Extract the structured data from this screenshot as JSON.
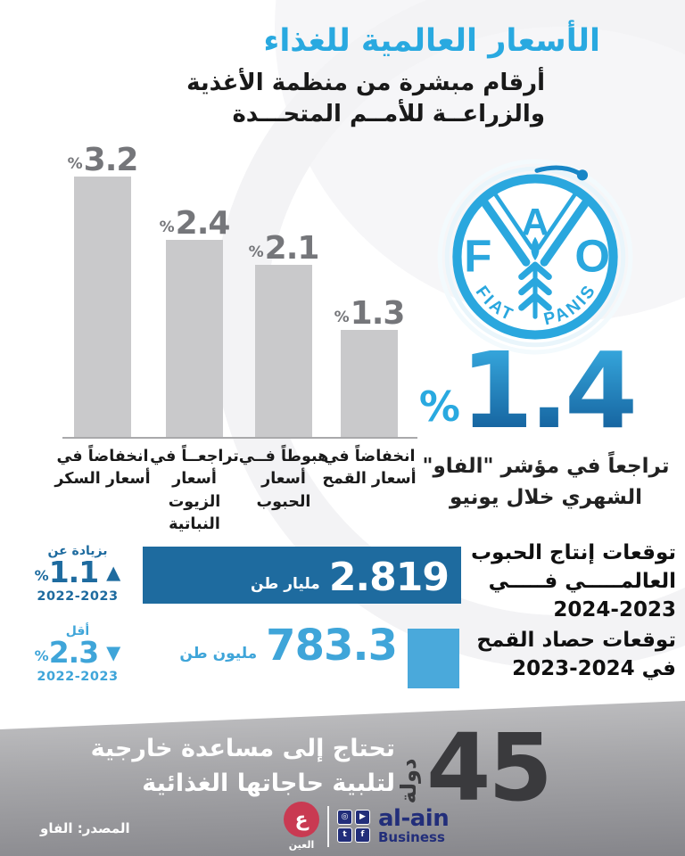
{
  "header": {
    "title": "الأسعار العالمية للغذاء",
    "subtitle_line1": "أرقام مبشرة من منظمة الأغذية",
    "subtitle_line2": "والزراعــة للأمــم المتحـــدة"
  },
  "chart_data": {
    "type": "bar",
    "unit": "%",
    "percent_sign": "%",
    "categories": [
      "انخفاضاً في أسعار السكر",
      "تراجعــاً في أسعار الزيوت النباتية",
      "هبوطاً فــي أسعار الحبوب",
      "انخفاضاً في أسعار القمح"
    ],
    "categories_lines": [
      [
        "انخفاضاً في",
        "أسعار السكر",
        ""
      ],
      [
        "تراجعــاً في",
        "أسعار الزيوت",
        "النباتية"
      ],
      [
        "هبوطاً فــي",
        "أسعار الحبوب",
        ""
      ],
      [
        "انخفاضاً في",
        "أسعار القمح",
        ""
      ]
    ],
    "values": [
      3.2,
      2.4,
      2.1,
      1.3
    ],
    "value_labels": [
      "3.2",
      "2.4",
      "2.1",
      "1.3"
    ],
    "ylim": [
      0,
      3.5
    ],
    "grid": false,
    "legend": false,
    "bar_color": "#c9c9cb",
    "value_color": "#75767a"
  },
  "fao_logo": {
    "letter_f": "F",
    "letter_a": "A",
    "letter_o": "O",
    "motto_left": "FIAT",
    "motto_right": "PANIS",
    "color": "#2aa7de"
  },
  "highlight": {
    "percent_sign": "%",
    "value": "1.4",
    "caption_line1": "تراجعاً في مؤشر \"الفاو\"",
    "caption_line2": "الشهري خلال يونيو",
    "color_top": "#36a7dd",
    "color_bottom": "#14609c"
  },
  "forecasts": [
    {
      "title_line1": "توقعات إنتاج الحبوب",
      "title_line2": "العالمـــــي فـــــي",
      "title_line3": "2024-2023",
      "value": "2.819",
      "unit": "مليار طن",
      "change_label": "بزيادة عن",
      "change_percent_sign": "%",
      "change_value": "1.1",
      "change_years": "2022-2023",
      "arrow": "▲",
      "color": "#1e6b9f"
    },
    {
      "title_line1": "توقعات حصاد القمح",
      "title_line2": "في 2024-2023",
      "value": "783.3",
      "unit": "مليون طن",
      "change_label": "أقل",
      "change_percent_sign": "%",
      "change_value": "2.3",
      "change_years": "2022-2023",
      "arrow": "▼",
      "color": "#3fa5d9"
    }
  ],
  "banner": {
    "number": "45",
    "number_label": "دولة",
    "line1": "تحتاج إلى مساعدة خارجية",
    "line2": "لتلبية حاجاتها الغذائية"
  },
  "footer": {
    "source": "المصدر: الفاو",
    "brand_arabic_glyph": "ع",
    "brand_arabic": "العين",
    "brand_name": "al-ain",
    "brand_sub": "Business",
    "social_icons": [
      {
        "name": "instagram-icon",
        "glyph": "◎"
      },
      {
        "name": "youtube-icon",
        "glyph": "▶"
      },
      {
        "name": "twitter-icon",
        "glyph": "t"
      },
      {
        "name": "facebook-icon",
        "glyph": "f"
      }
    ]
  },
  "colors": {
    "title_blue": "#29a9e0",
    "dark_blue": "#1e6b9f",
    "light_blue": "#3fa5d9",
    "bar_gray": "#c9c9cb",
    "banner_number": "#3a3a3d",
    "navy": "#222e7a",
    "brand_red": "#c93a52"
  }
}
